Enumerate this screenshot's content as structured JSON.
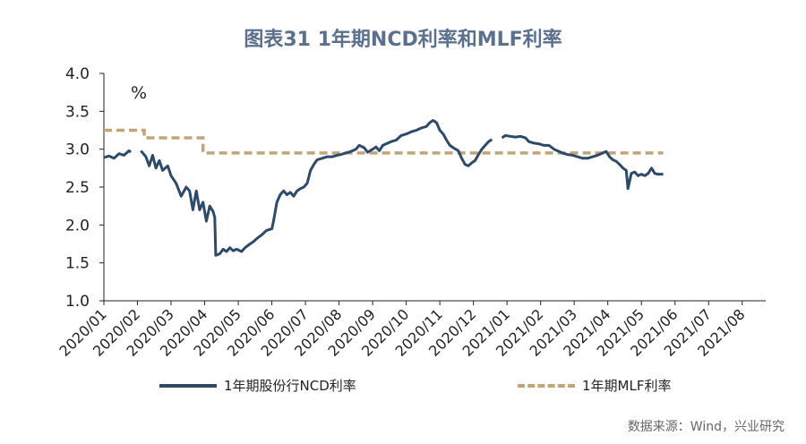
{
  "title": "图表31  1年期NCD利率和MLF利率",
  "source": "数据来源：Wind，兴业研究",
  "chart_data": {
    "type": "line",
    "ylabel": "%",
    "ylim": [
      1.0,
      4.0
    ],
    "yticks": [
      "1.0",
      "1.5",
      "2.0",
      "2.5",
      "3.0",
      "3.5",
      "4.0"
    ],
    "xticks": [
      "2020/01",
      "2020/02",
      "2020/03",
      "2020/04",
      "2020/05",
      "2020/06",
      "2020/07",
      "2020/08",
      "2020/09",
      "2020/10",
      "2020/11",
      "2020/12",
      "2021/01",
      "2021/02",
      "2021/03",
      "2021/04",
      "2021/05",
      "2021/06",
      "2021/07",
      "2021/08"
    ],
    "legend_position": "bottom",
    "series": [
      {
        "name": "1年期股份行NCD利率",
        "color": "#2e4a6b",
        "style": "solid",
        "points": [
          [
            0.0,
            2.89
          ],
          [
            0.15,
            2.91
          ],
          [
            0.3,
            2.88
          ],
          [
            0.45,
            2.94
          ],
          [
            0.6,
            2.92
          ],
          [
            0.75,
            2.98
          ],
          [
            0.8,
            2.96
          ],
          [
            1.1,
            2.98
          ],
          [
            1.25,
            2.9
          ],
          [
            1.35,
            2.78
          ],
          [
            1.45,
            2.92
          ],
          [
            1.55,
            2.75
          ],
          [
            1.65,
            2.85
          ],
          [
            1.75,
            2.72
          ],
          [
            1.9,
            2.78
          ],
          [
            2.0,
            2.65
          ],
          [
            2.15,
            2.55
          ],
          [
            2.3,
            2.38
          ],
          [
            2.45,
            2.5
          ],
          [
            2.55,
            2.45
          ],
          [
            2.65,
            2.2
          ],
          [
            2.75,
            2.45
          ],
          [
            2.85,
            2.2
          ],
          [
            2.95,
            2.3
          ],
          [
            3.05,
            2.05
          ],
          [
            3.15,
            2.25
          ],
          [
            3.25,
            2.18
          ],
          [
            3.3,
            2.1
          ],
          [
            3.33,
            1.6
          ],
          [
            3.45,
            1.62
          ],
          [
            3.55,
            1.68
          ],
          [
            3.65,
            1.65
          ],
          [
            3.75,
            1.7
          ],
          [
            3.85,
            1.66
          ],
          [
            3.95,
            1.68
          ],
          [
            4.1,
            1.65
          ],
          [
            4.2,
            1.7
          ],
          [
            4.35,
            1.75
          ],
          [
            4.45,
            1.78
          ],
          [
            4.55,
            1.82
          ],
          [
            4.7,
            1.87
          ],
          [
            4.85,
            1.93
          ],
          [
            5.0,
            1.95
          ],
          [
            5.05,
            2.05
          ],
          [
            5.15,
            2.3
          ],
          [
            5.25,
            2.4
          ],
          [
            5.35,
            2.45
          ],
          [
            5.45,
            2.4
          ],
          [
            5.55,
            2.43
          ],
          [
            5.65,
            2.38
          ],
          [
            5.75,
            2.45
          ],
          [
            5.85,
            2.48
          ],
          [
            5.95,
            2.5
          ],
          [
            6.05,
            2.55
          ],
          [
            6.15,
            2.72
          ],
          [
            6.25,
            2.8
          ],
          [
            6.35,
            2.86
          ],
          [
            6.5,
            2.88
          ],
          [
            6.65,
            2.9
          ],
          [
            6.8,
            2.9
          ],
          [
            6.95,
            2.92
          ],
          [
            7.05,
            2.93
          ],
          [
            7.2,
            2.95
          ],
          [
            7.35,
            2.97
          ],
          [
            7.5,
            3.0
          ],
          [
            7.6,
            3.05
          ],
          [
            7.75,
            3.02
          ],
          [
            7.85,
            2.96
          ],
          [
            8.0,
            3.0
          ],
          [
            8.1,
            3.03
          ],
          [
            8.2,
            2.98
          ],
          [
            8.3,
            3.05
          ],
          [
            8.45,
            3.08
          ],
          [
            8.55,
            3.1
          ],
          [
            8.7,
            3.12
          ],
          [
            8.85,
            3.18
          ],
          [
            9.0,
            3.2
          ],
          [
            9.15,
            3.23
          ],
          [
            9.3,
            3.25
          ],
          [
            9.45,
            3.28
          ],
          [
            9.6,
            3.3
          ],
          [
            9.7,
            3.35
          ],
          [
            9.8,
            3.38
          ],
          [
            9.9,
            3.35
          ],
          [
            10.0,
            3.25
          ],
          [
            10.1,
            3.2
          ],
          [
            10.2,
            3.12
          ],
          [
            10.3,
            3.05
          ],
          [
            10.4,
            3.02
          ],
          [
            10.55,
            2.98
          ],
          [
            10.65,
            2.88
          ],
          [
            10.75,
            2.8
          ],
          [
            10.85,
            2.78
          ],
          [
            10.95,
            2.82
          ],
          [
            11.05,
            2.85
          ],
          [
            11.15,
            2.93
          ],
          [
            11.25,
            3.0
          ],
          [
            11.35,
            3.05
          ],
          [
            11.45,
            3.1
          ],
          [
            11.55,
            3.13
          ],
          [
            11.85,
            3.15
          ],
          [
            11.95,
            3.18
          ],
          [
            12.1,
            3.17
          ],
          [
            12.25,
            3.16
          ],
          [
            12.4,
            3.17
          ],
          [
            12.55,
            3.15
          ],
          [
            12.65,
            3.1
          ],
          [
            12.8,
            3.08
          ],
          [
            12.95,
            3.07
          ],
          [
            13.1,
            3.05
          ],
          [
            13.25,
            3.05
          ],
          [
            13.4,
            3.0
          ],
          [
            13.55,
            2.97
          ],
          [
            13.65,
            2.95
          ],
          [
            13.8,
            2.93
          ],
          [
            13.95,
            2.92
          ],
          [
            14.1,
            2.9
          ],
          [
            14.25,
            2.88
          ],
          [
            14.4,
            2.88
          ],
          [
            14.55,
            2.9
          ],
          [
            14.7,
            2.92
          ],
          [
            14.85,
            2.95
          ],
          [
            14.95,
            2.97
          ],
          [
            15.05,
            2.9
          ],
          [
            15.15,
            2.86
          ],
          [
            15.25,
            2.84
          ],
          [
            15.35,
            2.8
          ],
          [
            15.45,
            2.75
          ],
          [
            15.55,
            2.72
          ],
          [
            15.6,
            2.48
          ],
          [
            15.7,
            2.68
          ],
          [
            15.8,
            2.7
          ],
          [
            15.9,
            2.65
          ],
          [
            16.0,
            2.67
          ],
          [
            16.1,
            2.65
          ],
          [
            16.2,
            2.68
          ],
          [
            16.3,
            2.75
          ],
          [
            16.4,
            2.68
          ],
          [
            16.5,
            2.67
          ],
          [
            16.65,
            2.67
          ]
        ]
      },
      {
        "name": "1年期MLF利率",
        "color": "#c2a574",
        "style": "dashed",
        "steps": [
          [
            0.0,
            3.25
          ],
          [
            1.2,
            3.25
          ],
          [
            1.2,
            3.15
          ],
          [
            2.95,
            3.15
          ],
          [
            2.95,
            2.95
          ],
          [
            16.65,
            2.95
          ]
        ]
      }
    ]
  }
}
